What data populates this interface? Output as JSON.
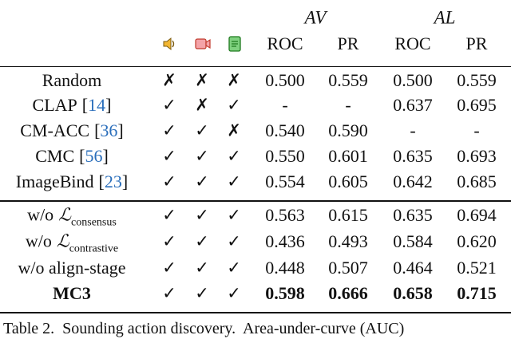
{
  "header": {
    "groups": [
      "AV",
      "AL"
    ],
    "metrics": [
      "ROC",
      "PR",
      "ROC",
      "PR"
    ]
  },
  "rows": [
    {
      "name": "Random",
      "modalities": [
        "✗",
        "✗",
        "✗"
      ],
      "values": [
        "0.500",
        "0.559",
        "0.500",
        "0.559"
      ]
    },
    {
      "name": "CLAP",
      "citation": [
        "[",
        "14",
        "]"
      ],
      "modalities": [
        "✓",
        "✗",
        "✓"
      ],
      "values": [
        "-",
        "-",
        "0.637",
        "0.695"
      ]
    },
    {
      "name": "CM-ACC",
      "citation": [
        "[",
        "36",
        "]"
      ],
      "modalities": [
        "✓",
        "✓",
        "✗"
      ],
      "values": [
        "0.540",
        "0.590",
        "-",
        "-"
      ]
    },
    {
      "name": "CMC",
      "citation": [
        "[",
        "56",
        "]"
      ],
      "modalities": [
        "✓",
        "✓",
        "✓"
      ],
      "values": [
        "0.550",
        "0.601",
        "0.635",
        "0.693"
      ]
    },
    {
      "name": "ImageBind",
      "citation": [
        "[",
        "23",
        "]"
      ],
      "modalities": [
        "✓",
        "✓",
        "✓"
      ],
      "values": [
        "0.554",
        "0.605",
        "0.642",
        "0.685"
      ]
    },
    {
      "name": "w/o",
      "symbol": "ℒ",
      "subscript": "consensus",
      "modalities": [
        "✓",
        "✓",
        "✓"
      ],
      "values": [
        "0.563",
        "0.615",
        "0.635",
        "0.694"
      ]
    },
    {
      "name": "w/o",
      "symbol": "ℒ",
      "subscript": "contrastive",
      "modalities": [
        "✓",
        "✓",
        "✓"
      ],
      "values": [
        "0.436",
        "0.493",
        "0.584",
        "0.620"
      ]
    },
    {
      "name": "w/o align-stage",
      "modalities": [
        "✓",
        "✓",
        "✓"
      ],
      "values": [
        "0.448",
        "0.507",
        "0.464",
        "0.521"
      ]
    },
    {
      "name": "MC3",
      "modalities": [
        "✓",
        "✓",
        "✓"
      ],
      "values": [
        "0.598",
        "0.666",
        "0.658",
        "0.715"
      ],
      "bold": true
    }
  ],
  "caption": "Table 2.  Sounding action discovery.  Area-under-curve (AUC)"
}
